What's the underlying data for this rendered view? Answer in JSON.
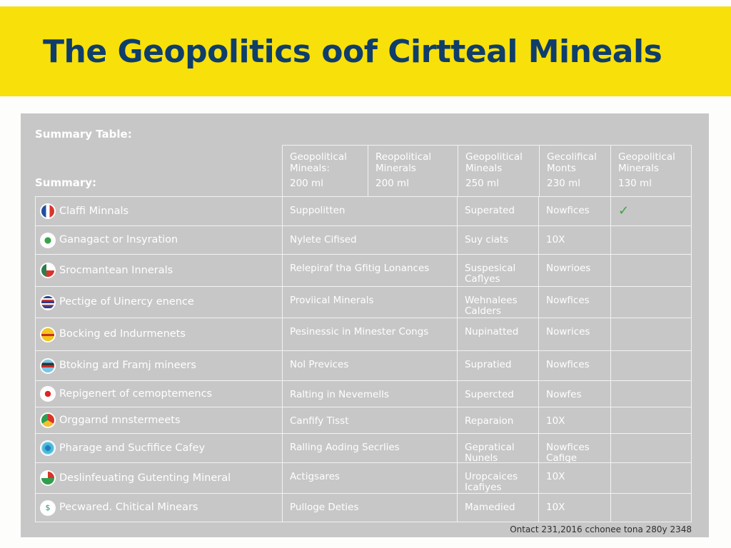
{
  "header": {
    "title": "The Geopolitics oof Cirtteal Mineals",
    "background": "#f8e00a",
    "title_color": "#0f3e6b"
  },
  "card": {
    "summary_table_label": "Summary Table:",
    "summary_label": "Summary:",
    "background": "#c7c7c7",
    "footer_note": "Ontact 231,2016 cchonee tona 280y 2348"
  },
  "table": {
    "columns": [
      {
        "title": "Geopolitical Mineals:",
        "value": "200 ml"
      },
      {
        "title": "Reopolitical Minerals",
        "value": "200 ml"
      },
      {
        "title": "Geopolitical Mineals",
        "value": "250 ml"
      },
      {
        "title": "Gecolifical Monts",
        "value": "230 ml"
      },
      {
        "title": "Geopolitical Minerals",
        "value": "130 ml"
      }
    ],
    "rows": [
      {
        "icon": "france-flag-icon",
        "label": "Claffi Minnals",
        "c1": "Suppolitten",
        "c2": "Superated",
        "c3": "Nowfices",
        "c4": "✓"
      },
      {
        "icon": "green-emblem-icon",
        "label": "Ganagact or Insyration",
        "c1": "Nylete Cifised",
        "c2": "Suy ciats",
        "c3": "10X",
        "c4": ""
      },
      {
        "icon": "green-red-flag-icon",
        "label": "Srocmantean Innerals",
        "c1": "Relepiraf tha Gfitig Lonances",
        "c2": "Suspesical Caflyes",
        "c3": "Nowrioes",
        "c4": ""
      },
      {
        "icon": "usa-flag-icon",
        "label": "Pectige of Uinercy enence",
        "c1": "Proviical Minerals",
        "c2": "Wehnalees Calders",
        "c3": "Nowfices",
        "c4": ""
      },
      {
        "icon": "germany-flag-icon",
        "label": "Bocking ed Indurmenets",
        "c1": "Pesinessic in Minester Congs",
        "c2": "Nupinatted",
        "c3": "Nowrices",
        "c4": ""
      },
      {
        "icon": "striped-flag-icon",
        "label": "Btoking ard Framj mineers",
        "c1": "Nol Previces",
        "c2": "Supratied",
        "c3": "Nowfices",
        "c4": ""
      },
      {
        "icon": "japan-flag-icon",
        "label": "Repigenert of cemoptemencs",
        "c1": "Ralting in Nevemells",
        "c2": "Supercted",
        "c3": "Nowfes",
        "c4": ""
      },
      {
        "icon": "chrome-like-icon",
        "label": "Orggarnd mnstermeets",
        "c1": "Canfify Tisst",
        "c2": "Reparaion",
        "c3": "10X",
        "c4": ""
      },
      {
        "icon": "globe-icon",
        "label": "Pharage and Sucfifice Cafey",
        "c1": "Ralling Aoding Secrlies",
        "c2": "Gepratical Nunels",
        "c3": "Nowfices Cafige",
        "c4": ""
      },
      {
        "icon": "multicolor-flag-icon",
        "label": "Deslinfeuating Gutenting Mineral",
        "c1": "Actigsares",
        "c2": "Uropcaices Icafiyes",
        "c3": "10X",
        "c4": ""
      },
      {
        "icon": "currency-exchange-icon",
        "label": "Pecwared. Chitical Minears",
        "c1": "Pulloge Deties",
        "c2": "Mamedied",
        "c3": "10X",
        "c4": ""
      }
    ]
  }
}
